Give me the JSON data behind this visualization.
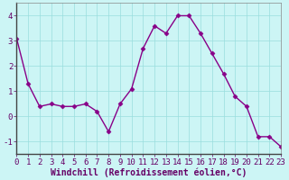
{
  "x": [
    0,
    1,
    2,
    3,
    4,
    5,
    6,
    7,
    8,
    9,
    10,
    11,
    12,
    13,
    14,
    15,
    16,
    17,
    18,
    19,
    20,
    21,
    22,
    23
  ],
  "y": [
    3.1,
    1.3,
    0.4,
    0.5,
    0.4,
    0.4,
    0.5,
    0.2,
    -0.6,
    0.5,
    1.1,
    2.7,
    3.6,
    3.3,
    4.0,
    4.0,
    3.3,
    2.5,
    1.7,
    0.8,
    0.4,
    -0.8,
    -0.8,
    -1.2
  ],
  "line_color": "#880088",
  "marker": "D",
  "markersize": 2.5,
  "linewidth": 1.0,
  "background_color": "#ccf5f5",
  "grid_color": "#99dddd",
  "xlabel": "Windchill (Refroidissement éolien,°C)",
  "xlabel_fontsize": 7,
  "tick_fontsize": 6.5,
  "xlim": [
    0,
    23
  ],
  "ylim": [
    -1.5,
    4.5
  ],
  "yticks": [
    -1,
    0,
    1,
    2,
    3,
    4
  ],
  "xticks": [
    0,
    1,
    2,
    3,
    4,
    5,
    6,
    7,
    8,
    9,
    10,
    11,
    12,
    13,
    14,
    15,
    16,
    17,
    18,
    19,
    20,
    21,
    22,
    23
  ],
  "spine_color": "#888888",
  "label_color": "#660066"
}
